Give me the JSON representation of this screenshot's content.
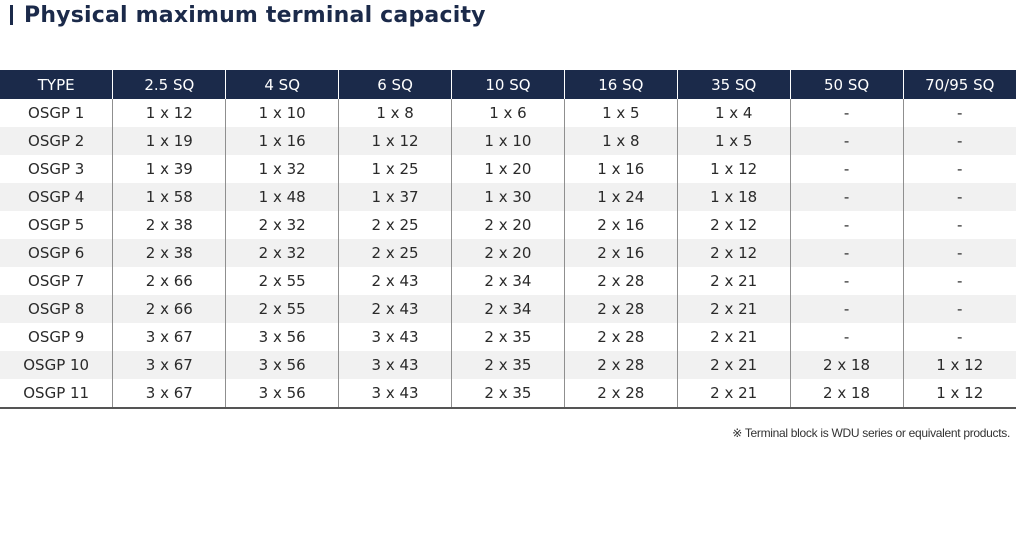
{
  "title": "Physical maximum terminal capacity",
  "columns": [
    "TYPE",
    "2.5 SQ",
    "4 SQ",
    "6 SQ",
    "10 SQ",
    "16 SQ",
    "35 SQ",
    "50 SQ",
    "70/95 SQ"
  ],
  "rows": [
    [
      "OSGP 1",
      "1 x 12",
      "1 x 10",
      "1 x 8",
      "1 x 6",
      "1 x 5",
      "1 x 4",
      "-",
      "-"
    ],
    [
      "OSGP 2",
      "1 x 19",
      "1 x 16",
      "1 x 12",
      "1 x 10",
      "1 x 8",
      "1 x 5",
      "-",
      "-"
    ],
    [
      "OSGP 3",
      "1 x 39",
      "1 x 32",
      "1 x 25",
      "1 x 20",
      "1 x 16",
      "1 x 12",
      "-",
      "-"
    ],
    [
      "OSGP 4",
      "1 x 58",
      "1 x 48",
      "1 x 37",
      "1 x 30",
      "1 x 24",
      "1 x 18",
      "-",
      "-"
    ],
    [
      "OSGP 5",
      "2 x 38",
      "2 x 32",
      "2 x 25",
      "2 x 20",
      "2 x 16",
      "2 x 12",
      "-",
      "-"
    ],
    [
      "OSGP 6",
      "2 x 38",
      "2 x 32",
      "2 x 25",
      "2 x 20",
      "2 x 16",
      "2 x 12",
      "-",
      "-"
    ],
    [
      "OSGP 7",
      "2 x 66",
      "2 x 55",
      "2 x 43",
      "2 x 34",
      "2 x 28",
      "2 x 21",
      "-",
      "-"
    ],
    [
      "OSGP 8",
      "2 x 66",
      "2 x 55",
      "2 x 43",
      "2 x 34",
      "2 x 28",
      "2 x 21",
      "-",
      "-"
    ],
    [
      "OSGP 9",
      "3 x 67",
      "3 x 56",
      "3 x 43",
      "2 x 35",
      "2 x 28",
      "2 x 21",
      "-",
      "-"
    ],
    [
      "OSGP 10",
      "3 x 67",
      "3 x 56",
      "3 x 43",
      "2 x 35",
      "2 x 28",
      "2 x 21",
      "2 x 18",
      "1 x 12"
    ],
    [
      "OSGP 11",
      "3 x 67",
      "3 x 56",
      "3 x 43",
      "2 x 35",
      "2 x 28",
      "2 x 21",
      "2 x 18",
      "1 x 12"
    ]
  ],
  "footnote": "※ Terminal block is WDU series or equivalent products.",
  "colors": {
    "header_bg": "#1b2a4a",
    "header_text": "#ffffff",
    "stripe": "#f1f1f1",
    "title": "#1b2a4a"
  }
}
